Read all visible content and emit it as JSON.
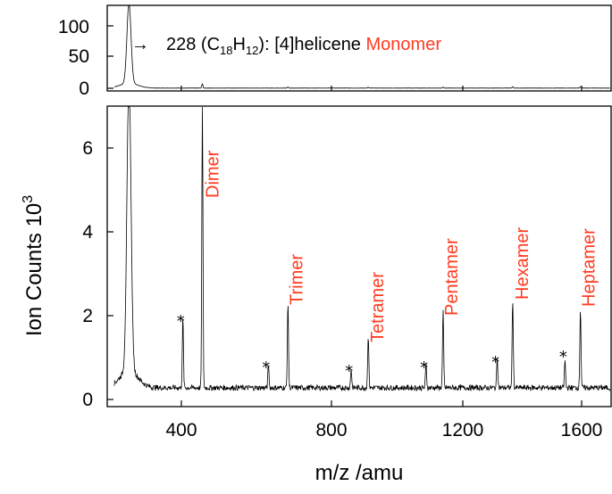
{
  "chart_data": [
    {
      "type": "line",
      "panel": "top",
      "ylim": [
        0,
        130
      ],
      "yticks": [
        "0",
        "50",
        "100"
      ],
      "xlim": [
        180,
        1700
      ],
      "peaks": [
        {
          "x": 228,
          "y": 128
        },
        {
          "x": 456,
          "y": 6.7
        },
        {
          "x": 684,
          "y": 2.0
        },
        {
          "x": 912,
          "y": 1.3
        },
        {
          "x": 1140,
          "y": 1.8
        },
        {
          "x": 1368,
          "y": 2.1
        },
        {
          "x": 1596,
          "y": 1.9
        }
      ],
      "annotation": {
        "arrow": "→",
        "text_before": "228 (C",
        "sub1": "18",
        "text_mid": "H",
        "sub2": "12",
        "text_after": "): [4]helicene ",
        "highlight": "Monomer",
        "highlight_color": "#ff3b1f"
      }
    },
    {
      "type": "line",
      "panel": "bottom",
      "xlabel": "m/z /amu",
      "ylabel": "Ion Counts 10",
      "ylabel_sup": "3",
      "xlim": [
        180,
        1700
      ],
      "ylim": [
        0,
        7
      ],
      "xticks": [
        "400",
        "800",
        "1200",
        "1600"
      ],
      "yticks": [
        "0",
        "2",
        "4",
        "6"
      ],
      "baseline": 0.28,
      "peaks": [
        {
          "x": 228,
          "y": 7.0
        },
        {
          "x": 404,
          "y": 1.65
        },
        {
          "x": 456,
          "y": 6.7
        },
        {
          "x": 632,
          "y": 0.55
        },
        {
          "x": 684,
          "y": 2.0
        },
        {
          "x": 860,
          "y": 0.45
        },
        {
          "x": 912,
          "y": 1.25
        },
        {
          "x": 1088,
          "y": 0.55
        },
        {
          "x": 1140,
          "y": 1.8
        },
        {
          "x": 1316,
          "y": 0.75
        },
        {
          "x": 1368,
          "y": 2.1
        },
        {
          "x": 1544,
          "y": 0.65
        },
        {
          "x": 1596,
          "y": 1.9
        }
      ],
      "labels": [
        {
          "text": "Dimer",
          "x": 456
        },
        {
          "text": "Trimer",
          "x": 684
        },
        {
          "text": "Tetramer",
          "x": 912
        },
        {
          "text": "Pentamer",
          "x": 1140
        },
        {
          "text": "Hexamer",
          "x": 1368
        },
        {
          "text": "Heptamer",
          "x": 1596
        }
      ],
      "label_color": "#ff3b1f",
      "stars": [
        {
          "text": "*",
          "x": 398
        },
        {
          "text": "*",
          "x": 626
        },
        {
          "text": "*",
          "x": 854
        },
        {
          "text": "*",
          "x": 1082
        },
        {
          "text": "*",
          "x": 1310
        },
        {
          "text": "*",
          "x": 1538
        }
      ]
    }
  ]
}
